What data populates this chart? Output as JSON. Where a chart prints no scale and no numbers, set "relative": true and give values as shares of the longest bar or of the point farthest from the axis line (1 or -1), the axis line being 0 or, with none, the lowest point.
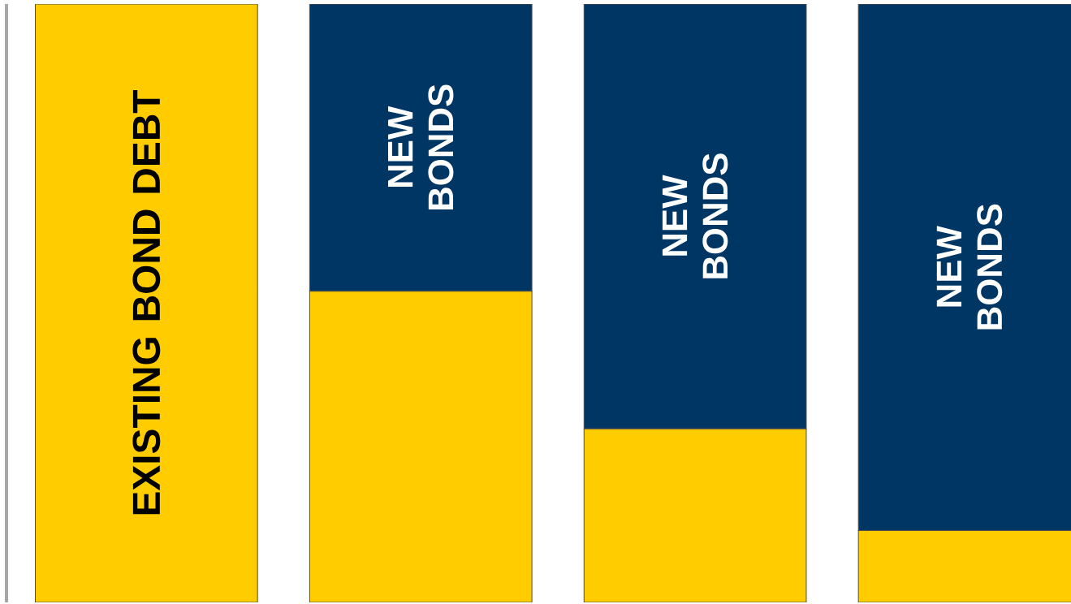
{
  "chart_data": {
    "type": "bar",
    "stacked": true,
    "relative": true,
    "categories": [
      null,
      null,
      null,
      null
    ],
    "series": [
      {
        "name": "EXISTING BOND DEBT",
        "color": "#ffcc00",
        "values": [
          1,
          0.52,
          0.29,
          0.12
        ]
      },
      {
        "name": "NEW BONDS",
        "color": "#003663",
        "values": [
          0,
          0.48,
          0.71,
          0.88
        ]
      }
    ],
    "legend": false
  }
}
